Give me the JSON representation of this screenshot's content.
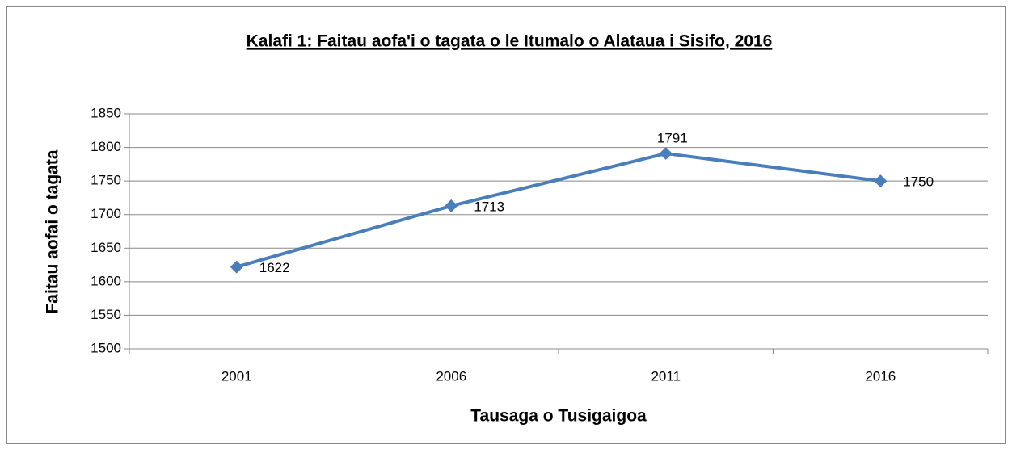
{
  "chart_data": {
    "type": "line",
    "title": "Kalafi 1: Faitau aofa'i o tagata o le Itumalo o Alataua i Sisifo, 2016",
    "x_label": "Tausaga o Tusigaigoa",
    "y_label": "Faitau aofai o tagata",
    "categories": [
      "2001",
      "2006",
      "2011",
      "2016"
    ],
    "values": [
      1622,
      1713,
      1791,
      1750
    ],
    "color": "#4a7ebb",
    "ylim": [
      1500,
      1850
    ],
    "yticks": [
      1500,
      1550,
      1600,
      1650,
      1700,
      1750,
      1800,
      1850
    ],
    "grid": true
  }
}
